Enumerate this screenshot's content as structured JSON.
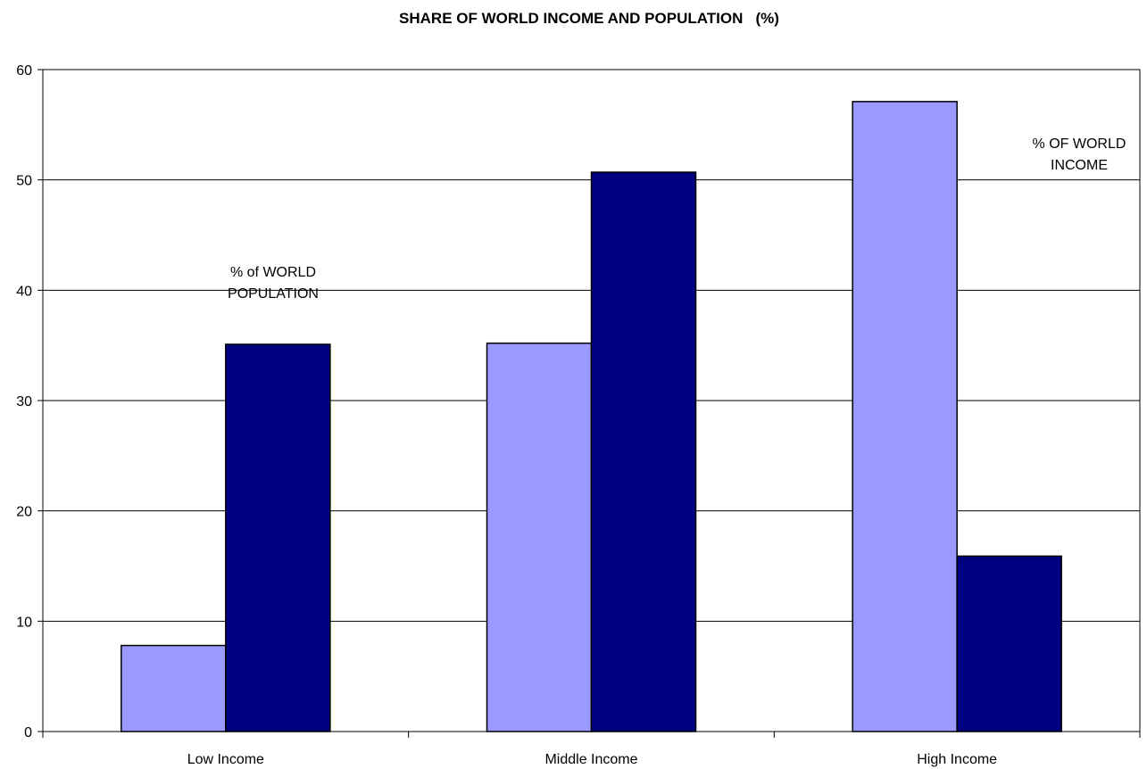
{
  "chart_data": {
    "type": "bar",
    "title": "SHARE OF WORLD INCOME AND POPULATION   (%)",
    "xlabel": "",
    "ylabel": "",
    "categories": [
      "Low Income",
      "Middle Income",
      "High Income"
    ],
    "series": [
      {
        "values": [
          7.8,
          35.2,
          57.1
        ],
        "color": "#9999ff"
      },
      {
        "values": [
          35.1,
          50.7,
          15.9
        ],
        "color": "#000080"
      }
    ],
    "ylim": [
      0,
      60
    ],
    "yticks": [
      0,
      10,
      20,
      30,
      40,
      50,
      60
    ],
    "grid": true,
    "annotations": [
      {
        "lines": [
          "% of WORLD",
          "POPULATION"
        ],
        "category": "Low Income"
      },
      {
        "lines": [
          "% OF WORLD",
          "INCOME"
        ],
        "category": "High Income"
      }
    ]
  }
}
